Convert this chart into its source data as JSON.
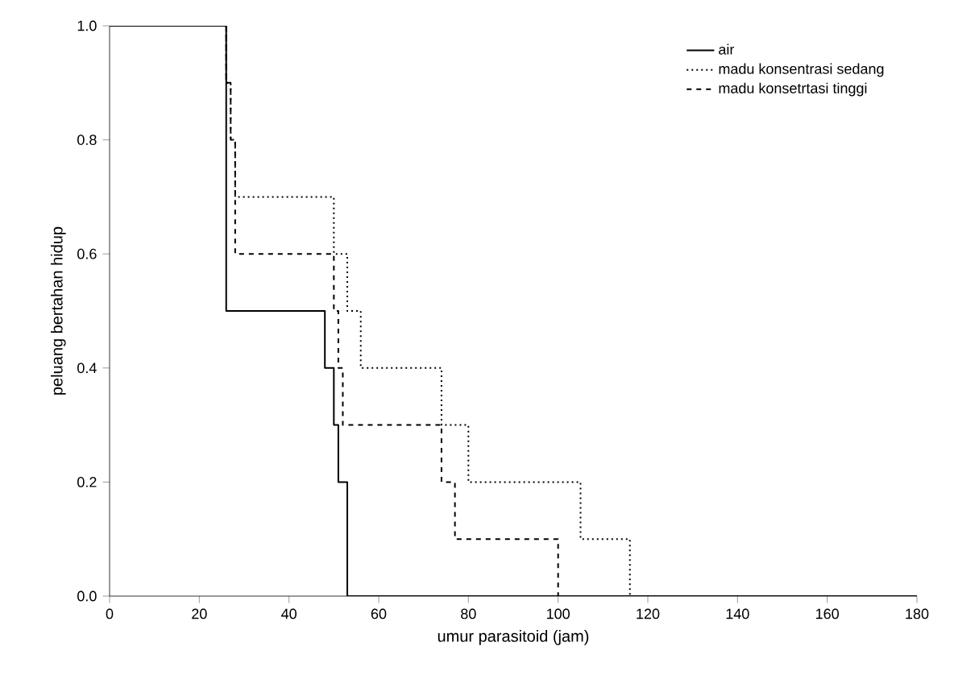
{
  "chart_data": {
    "type": "step",
    "xlabel": "umur parasitoid (jam)",
    "ylabel": "peluang bertahan hidup",
    "xlim": [
      0,
      180
    ],
    "ylim": [
      0,
      1
    ],
    "xticks": [
      0,
      20,
      40,
      60,
      80,
      100,
      120,
      140,
      160,
      180
    ],
    "yticks": [
      {
        "value": 0,
        "label": "0.0"
      },
      {
        "value": 0.2,
        "label": "0.2"
      },
      {
        "value": 0.4,
        "label": "0.4"
      },
      {
        "value": 0.6,
        "label": "0.6"
      },
      {
        "value": 0.8,
        "label": "0.8"
      },
      {
        "value": 1,
        "label": "1.0"
      }
    ],
    "legend": "top right",
    "grid": false,
    "marker": "none",
    "series": [
      {
        "name": "air",
        "color": "#000000",
        "line_style": "solid",
        "x": [
          0,
          26,
          48,
          50,
          51,
          53,
          180
        ],
        "values": [
          1,
          0.5,
          0.4,
          0.3,
          0.2,
          0,
          0
        ]
      },
      {
        "name": "madu konsentrasi sedang",
        "color": "#000000",
        "line_style": "dotted",
        "x": [
          0,
          26,
          27,
          28,
          50,
          53,
          56,
          74,
          80,
          105,
          116
        ],
        "values": [
          1,
          0.9,
          0.8,
          0.7,
          0.6,
          0.5,
          0.4,
          0.3,
          0.2,
          0.1,
          0
        ]
      },
      {
        "name": "madu konsetrtasi tinggi",
        "color": "#000000",
        "line_style": "dashed",
        "x": [
          0,
          26,
          27,
          28,
          50,
          51,
          52,
          74,
          77,
          100
        ],
        "values": [
          1,
          0.9,
          0.8,
          0.6,
          0.5,
          0.4,
          0.3,
          0.2,
          0.1,
          0
        ]
      }
    ]
  }
}
